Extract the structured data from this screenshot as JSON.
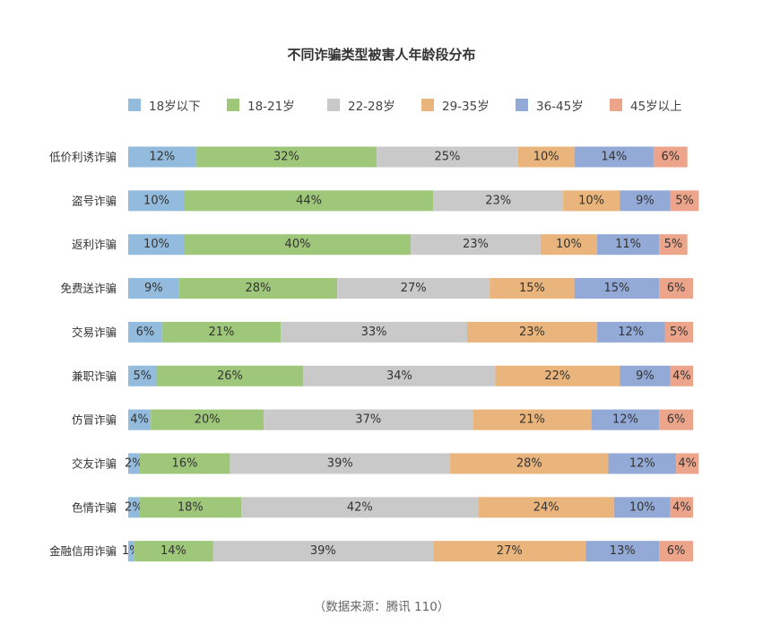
{
  "chart_data": {
    "type": "bar",
    "orientation": "horizontal",
    "stacked": true,
    "title": "不同诈骗类型被害人年龄段分布",
    "categories": [
      "低价利诱诈骗",
      "盗号诈骗",
      "返利诈骗",
      "免费送诈骗",
      "交易诈骗",
      "兼职诈骗",
      "仿冒诈骗",
      "交友诈骗",
      "色情诈骗",
      "金融信用诈骗"
    ],
    "series": [
      {
        "name": "18岁以下",
        "color": "#92bbdd",
        "values": [
          12,
          10,
          10,
          9,
          6,
          5,
          4,
          2,
          2,
          1
        ]
      },
      {
        "name": "18-21岁",
        "color": "#9fc77a",
        "values": [
          32,
          44,
          40,
          28,
          21,
          26,
          20,
          16,
          18,
          14
        ]
      },
      {
        "name": "22-28岁",
        "color": "#c9c9c9",
        "values": [
          25,
          23,
          23,
          27,
          33,
          34,
          37,
          39,
          42,
          39
        ]
      },
      {
        "name": "29-35岁",
        "color": "#e9b57c",
        "values": [
          10,
          10,
          10,
          15,
          23,
          22,
          21,
          28,
          24,
          27
        ]
      },
      {
        "name": "36-45岁",
        "color": "#93a9d6",
        "values": [
          14,
          9,
          11,
          15,
          12,
          9,
          12,
          12,
          10,
          13
        ]
      },
      {
        "name": "45岁以上",
        "color": "#eca58b",
        "values": [
          6,
          5,
          5,
          6,
          5,
          4,
          6,
          4,
          4,
          6
        ]
      }
    ],
    "value_suffix": "%",
    "legend_position": "top",
    "grid": false
  },
  "source_note": "（数据来源：腾讯 110）"
}
